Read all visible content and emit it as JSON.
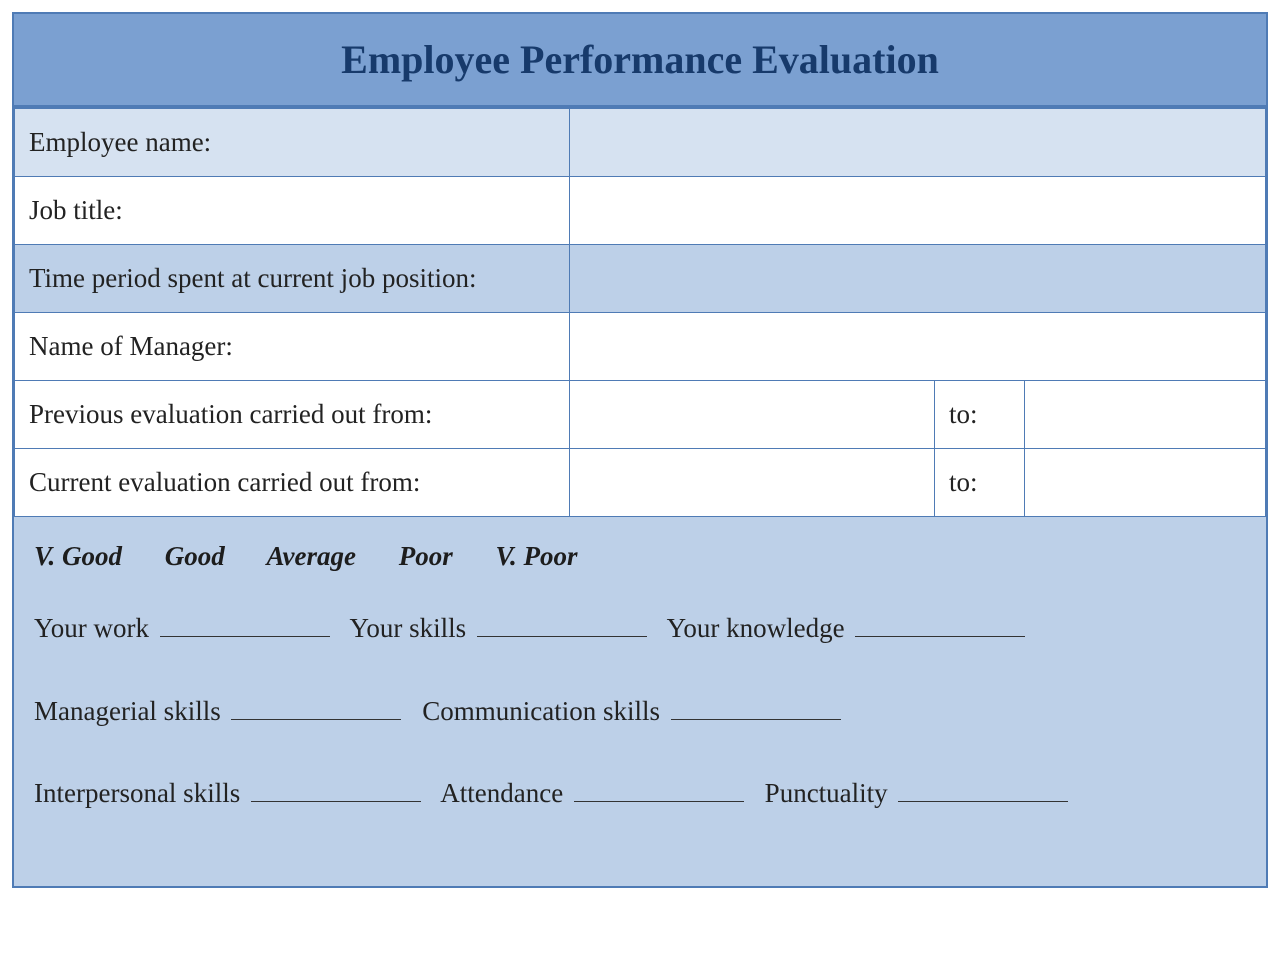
{
  "title": "Employee Performance Evaluation",
  "rows": {
    "employee_name": "Employee name:",
    "job_title": "Job title:",
    "time_period": "Time period spent at current job position:",
    "manager": "Name of Manager:",
    "prev_eval": "Previous evaluation carried out from:",
    "curr_eval": "Current evaluation carried out from:",
    "to": "to:"
  },
  "scale": {
    "vgood": "V. Good",
    "good": "Good",
    "average": "Average",
    "poor": "Poor",
    "vpoor": "V. Poor"
  },
  "criteria": {
    "line1": {
      "a": "Your work",
      "b": "Your skills",
      "c": "Your knowledge"
    },
    "line2": {
      "a": "Managerial skills",
      "b": "Communication skills"
    },
    "line3": {
      "a": "Interpersonal skills",
      "b": "Attendance",
      "c": "Punctuality"
    }
  },
  "colors": {
    "border": "#4f7bb5",
    "header_bg": "#7ba0d1",
    "header_text": "#173a6b",
    "light_row": "#d6e2f1",
    "white_row": "#ffffff",
    "med_row": "#bdd0e8",
    "eval_bg": "#bdd0e8"
  }
}
